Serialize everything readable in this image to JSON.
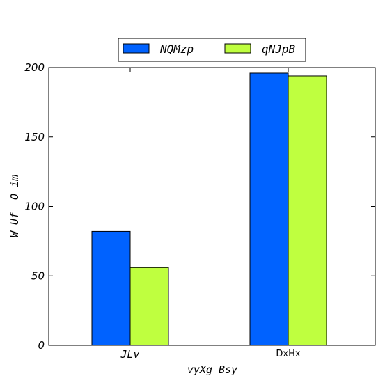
{
  "chart_data": {
    "type": "bar",
    "categories": [
      "JLv",
      "DxHx"
    ],
    "series": [
      {
        "name": "NQMzp",
        "values": [
          82,
          196
        ],
        "color": "#0062ff"
      },
      {
        "name": "qNJpB",
        "values": [
          56,
          194
        ],
        "color": "#bfff3f"
      }
    ],
    "xlabel": "vyXg Bsy",
    "ylabel": "W Uf  O im",
    "ylim": [
      0,
      200
    ],
    "yticks": [
      0,
      50,
      100,
      150,
      200
    ],
    "legend": "top-center",
    "grid": false
  }
}
